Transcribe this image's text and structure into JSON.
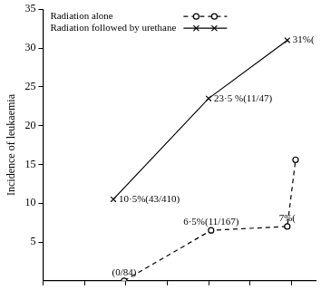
{
  "chart_data": {
    "type": "line",
    "ylabel": "Incidence of leukaemia",
    "xlim": [
      0,
      6.6
    ],
    "xticks": [
      0,
      1,
      2,
      3,
      4,
      5,
      6
    ],
    "ylim": [
      0,
      35
    ],
    "yticks": [
      5,
      10,
      15,
      20,
      25,
      30,
      35
    ],
    "tick_labels": "y",
    "legend": "top-left",
    "data_labels": true,
    "grid": false,
    "series": [
      {
        "name": "Radiation alone",
        "color": "#000000",
        "marker": "circle",
        "line_style": "dashed",
        "x": [
          1.96,
          4.06,
          5.9,
          6.1
        ],
        "values": [
          0,
          6.5,
          7,
          15.6
        ],
        "value_labels": [
          "(0/84)",
          "6·5%(11/167)",
          "7%(",
          null
        ]
      },
      {
        "name": "Radiation followed by urethane",
        "color": "#000000",
        "marker": "x",
        "line_style": "solid",
        "x": [
          1.7,
          4,
          5.9
        ],
        "values": [
          10.5,
          23.5,
          31
        ],
        "value_labels": [
          "10·5%(43/410)",
          "23·5 %(11/47)",
          "31%("
        ]
      }
    ]
  }
}
